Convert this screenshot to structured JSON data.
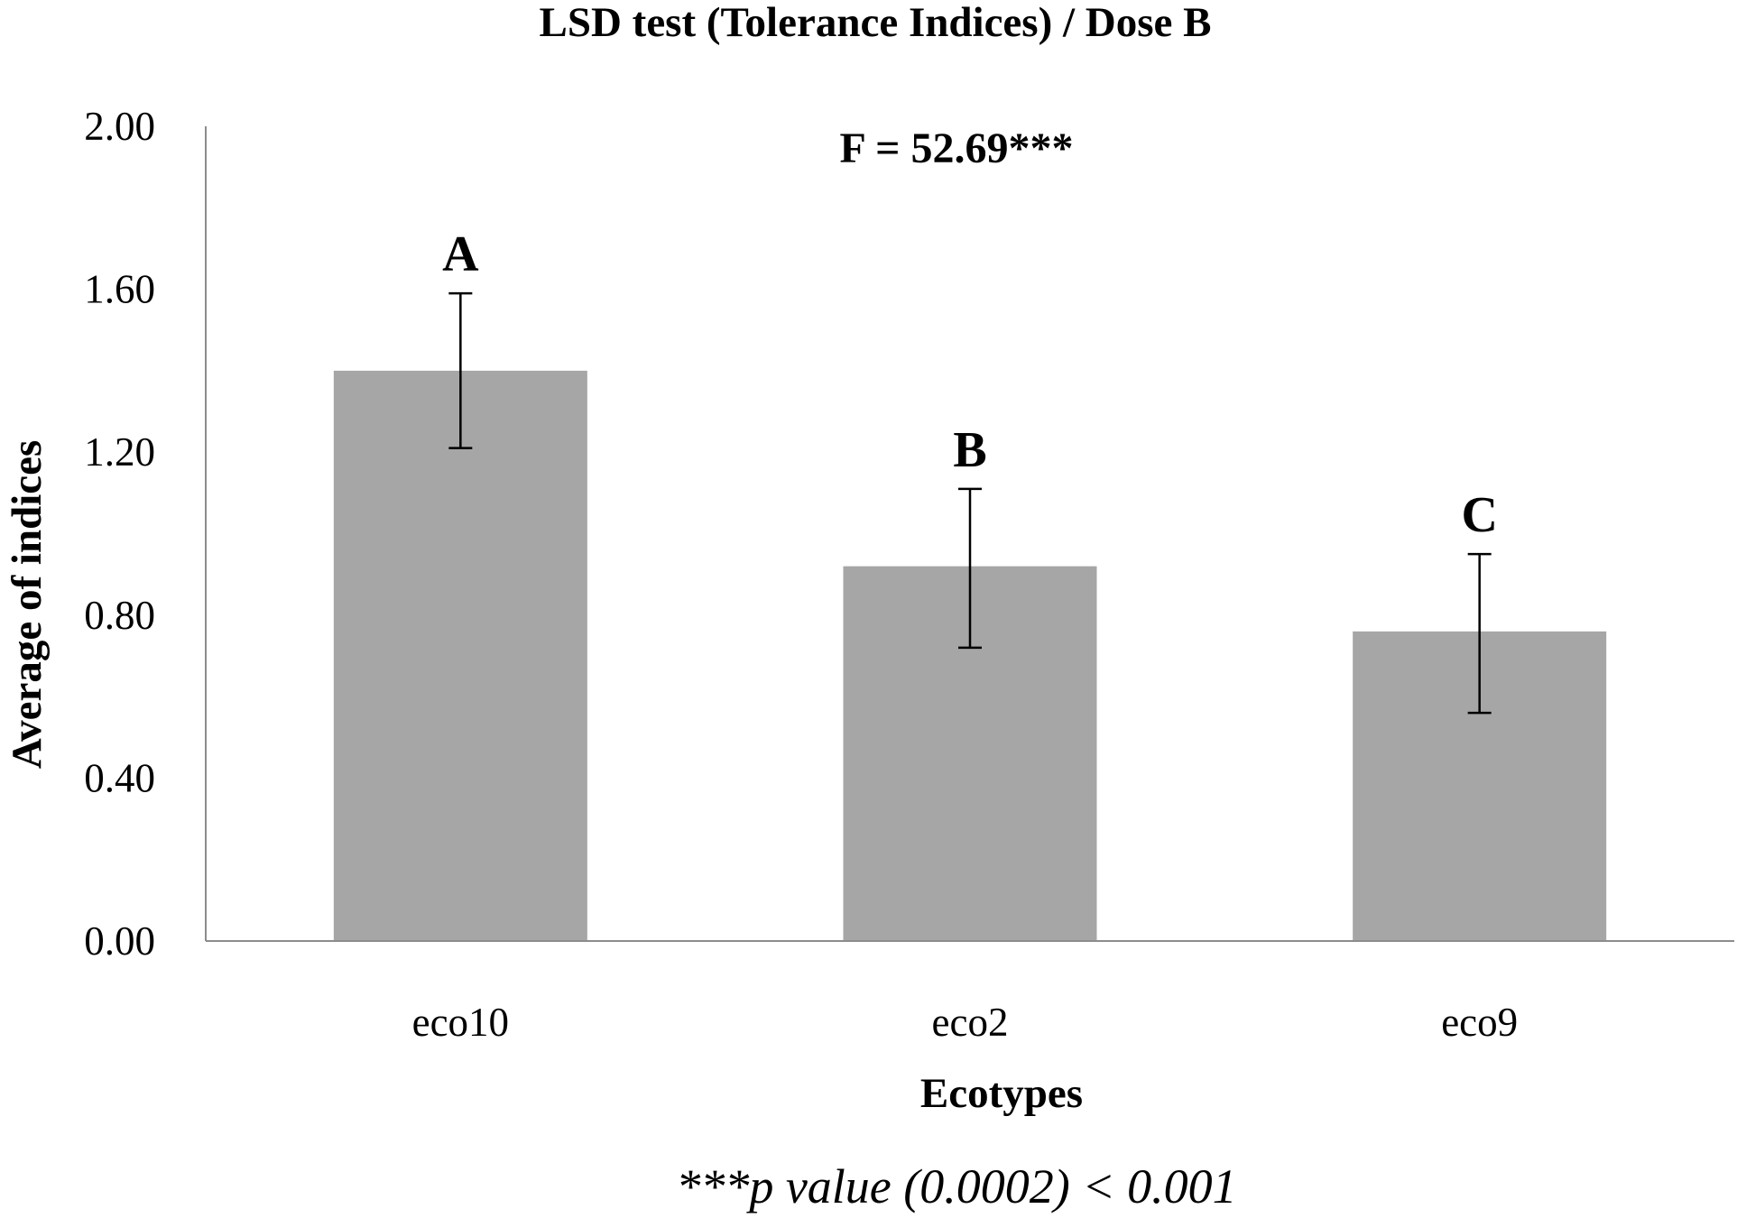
{
  "chart_data": {
    "type": "bar",
    "title": "LSD test (Tolerance Indices) / Dose B",
    "annotation": "F = 52.69***",
    "xlabel": "Ecotypes",
    "ylabel": "Average of indices",
    "categories": [
      "eco10",
      "eco2",
      "eco9"
    ],
    "values": [
      1.4,
      0.92,
      0.76
    ],
    "error_upper": [
      1.59,
      1.11,
      0.95
    ],
    "error_lower": [
      1.21,
      0.72,
      0.56
    ],
    "group_letters": [
      "A",
      "B",
      "C"
    ],
    "ylim": [
      0,
      2
    ],
    "yticks": [
      "0.00",
      "0.40",
      "0.80",
      "1.20",
      "1.60",
      "2.00"
    ],
    "grid": false,
    "legend": "none",
    "bar_color": "#a6a6a6",
    "footnote": "***p value (0.0002) < 0.001"
  }
}
